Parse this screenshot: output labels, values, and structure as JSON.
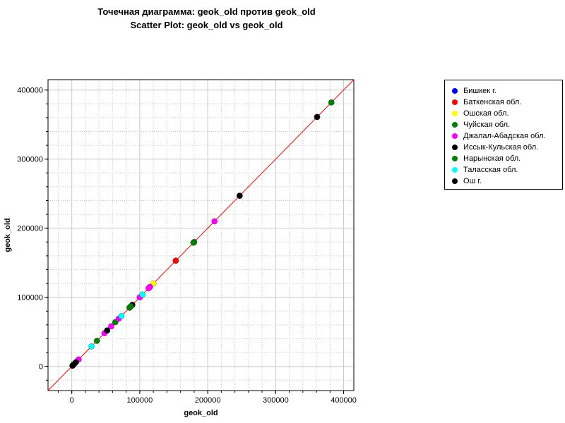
{
  "chart_data": {
    "type": "scatter",
    "title": "Точечная диаграмма: geok_old против geok_old",
    "subtitle": "Scatter Plot: geok_old vs geok_old",
    "xlabel": "geok_old",
    "ylabel": "geok_old",
    "xlim": [
      -35000,
      415000
    ],
    "ylim": [
      -35000,
      415000
    ],
    "xticks": [
      0,
      100000,
      200000,
      300000,
      400000
    ],
    "yticks": [
      0,
      100000,
      200000,
      300000,
      400000
    ],
    "grid": true,
    "legend_position": "right",
    "reference_line": {
      "slope": 1,
      "intercept": 0,
      "color": "#ff0000"
    },
    "series": [
      {
        "name": "Бишкек г.",
        "color": "#0000ff",
        "points": []
      },
      {
        "name": "Баткенская обл.",
        "color": "#ff0000",
        "points": [
          [
            153000,
            153000
          ],
          [
            2000,
            2000
          ]
        ]
      },
      {
        "name": "Ошская обл.",
        "color": "#ffff00",
        "points": [
          [
            120000,
            120000
          ],
          [
            86000,
            86000
          ]
        ]
      },
      {
        "name": "Чуйская обл.",
        "color": "#008000",
        "points": [
          [
            382000,
            382000
          ],
          [
            180000,
            180000
          ],
          [
            64000,
            64000
          ],
          [
            37000,
            37000
          ],
          [
            85000,
            85000
          ]
        ]
      },
      {
        "name": "Джалал-Абадская обл.",
        "color": "#ff00ff",
        "points": [
          [
            210000,
            210000
          ],
          [
            115000,
            115000
          ],
          [
            113000,
            113000
          ],
          [
            100000,
            100000
          ],
          [
            69000,
            69000
          ],
          [
            58000,
            58000
          ],
          [
            48000,
            48000
          ],
          [
            10000,
            10000
          ]
        ]
      },
      {
        "name": "Иссык-Кульская обл.",
        "color": "#000000",
        "points": [
          [
            361000,
            361000
          ],
          [
            247000,
            247000
          ],
          [
            89000,
            89000
          ],
          [
            52000,
            52000
          ],
          [
            6000,
            6000
          ],
          [
            3000,
            3000
          ]
        ]
      },
      {
        "name": "Нарынская обл.",
        "color": "#008000",
        "points": [
          [
            179000,
            179000
          ],
          [
            87000,
            87000
          ]
        ]
      },
      {
        "name": "Таласская обл.",
        "color": "#00ffff",
        "points": [
          [
            104000,
            104000
          ],
          [
            73000,
            73000
          ],
          [
            29000,
            29000
          ]
        ]
      },
      {
        "name": "Ош г.",
        "color": "#000000",
        "points": [
          [
            1000,
            1000
          ]
        ]
      }
    ]
  }
}
